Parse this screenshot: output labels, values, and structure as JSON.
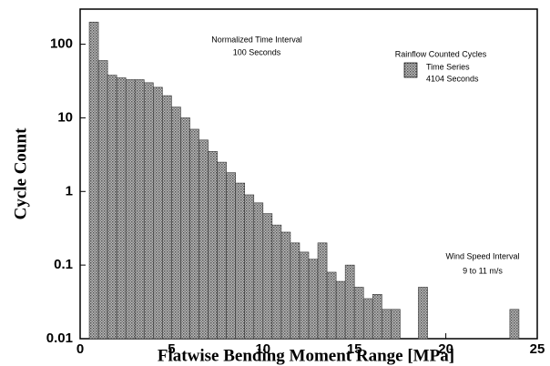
{
  "chart_data": {
    "type": "histogram",
    "xlabel": "Flatwise Bending Moment Range [MPa]",
    "ylabel": "Cycle Count",
    "annotations": [
      "Normalized Time Interval",
      "100 Seconds",
      "Rainflow Counted Cycles",
      "Wind Speed Interval",
      "9 to 11 m/s"
    ],
    "series": [
      {
        "name": "Time Series",
        "subname": "4104 Seconds",
        "color": "#8a8a8a",
        "bins": [
          0.5,
          1,
          1.5,
          2,
          2.5,
          3,
          3.5,
          4,
          4.5,
          5,
          5.5,
          6,
          6.5,
          7,
          7.5,
          8,
          8.5,
          9,
          9.5,
          10,
          10.5,
          11,
          11.5,
          12,
          12.5,
          13,
          13.5,
          14,
          14.5,
          15,
          15.5,
          16,
          16.5,
          17,
          17.5,
          18,
          18.5,
          19,
          19.5,
          20,
          20.5,
          21,
          21.5,
          22,
          22.5,
          23,
          23.5,
          24
        ],
        "values": [
          200,
          60,
          38,
          35,
          33,
          33,
          30,
          26,
          20,
          14,
          10,
          7,
          5,
          3.5,
          2.5,
          1.8,
          1.3,
          0.9,
          0.7,
          0.5,
          0.35,
          0.28,
          0.2,
          0.15,
          0.12,
          0.2,
          0.08,
          0.06,
          0.1,
          0.05,
          0.035,
          0.04,
          0.025,
          0.025,
          0,
          0,
          0.05,
          0,
          0,
          0,
          0,
          0,
          0,
          0,
          0,
          0,
          0.025
        ]
      }
    ],
    "xlim": [
      0,
      25
    ],
    "xticks": [
      0,
      5,
      10,
      15,
      20,
      25
    ],
    "ylim": [
      0.01,
      300
    ],
    "yticks": [
      0.01,
      0.1,
      1,
      10,
      100
    ],
    "log_y": true,
    "grid": false
  }
}
